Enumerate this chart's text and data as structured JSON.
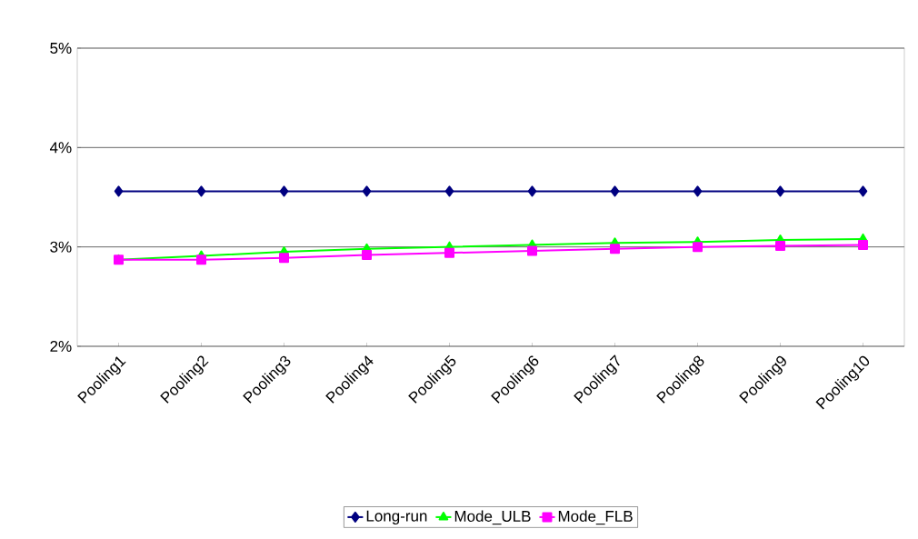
{
  "chart_data": {
    "type": "line",
    "categories": [
      "Pooling1",
      "Pooling2",
      "Pooling3",
      "Pooling4",
      "Pooling5",
      "Pooling6",
      "Pooling7",
      "Pooling8",
      "Pooling9",
      "Pooling10"
    ],
    "series": [
      {
        "name": "Long-run",
        "color": "#000080",
        "marker": "diamond",
        "values": [
          3.56,
          3.56,
          3.56,
          3.56,
          3.56,
          3.56,
          3.56,
          3.56,
          3.56,
          3.56
        ]
      },
      {
        "name": "Mode_ULB",
        "color": "#00ff00",
        "marker": "triangle",
        "values": [
          2.87,
          2.91,
          2.95,
          2.98,
          3.0,
          3.02,
          3.04,
          3.05,
          3.07,
          3.08
        ]
      },
      {
        "name": "Mode_FLB",
        "color": "#ff00ff",
        "marker": "square",
        "values": [
          2.87,
          2.87,
          2.89,
          2.92,
          2.94,
          2.96,
          2.98,
          3.0,
          3.01,
          3.02
        ]
      }
    ],
    "ylim": [
      2,
      5
    ],
    "yticks": [
      {
        "value": 2,
        "label": "2%"
      },
      {
        "value": 3,
        "label": "3%"
      },
      {
        "value": 4,
        "label": "4%"
      },
      {
        "value": 5,
        "label": "5%"
      }
    ],
    "grid": "y",
    "legend": "bottom",
    "line_style": "solid"
  }
}
